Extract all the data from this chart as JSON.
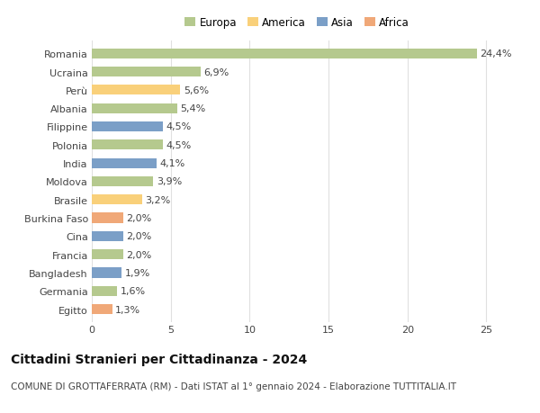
{
  "categories": [
    "Romania",
    "Ucraina",
    "Perù",
    "Albania",
    "Filippine",
    "Polonia",
    "India",
    "Moldova",
    "Brasile",
    "Burkina Faso",
    "Cina",
    "Francia",
    "Bangladesh",
    "Germania",
    "Egitto"
  ],
  "values": [
    24.4,
    6.9,
    5.6,
    5.4,
    4.5,
    4.5,
    4.1,
    3.9,
    3.2,
    2.0,
    2.0,
    2.0,
    1.9,
    1.6,
    1.3
  ],
  "labels": [
    "24,4%",
    "6,9%",
    "5,6%",
    "5,4%",
    "4,5%",
    "4,5%",
    "4,1%",
    "3,9%",
    "3,2%",
    "2,0%",
    "2,0%",
    "2,0%",
    "1,9%",
    "1,6%",
    "1,3%"
  ],
  "continents": [
    "Europa",
    "Europa",
    "America",
    "Europa",
    "Asia",
    "Europa",
    "Asia",
    "Europa",
    "America",
    "Africa",
    "Asia",
    "Europa",
    "Asia",
    "Europa",
    "Africa"
  ],
  "colors": {
    "Europa": "#b5c98e",
    "America": "#f9d07a",
    "Asia": "#7b9fc7",
    "Africa": "#f0a878"
  },
  "legend_labels": [
    "Europa",
    "America",
    "Asia",
    "Africa"
  ],
  "xlim": [
    0,
    26
  ],
  "xticks": [
    0,
    5,
    10,
    15,
    20,
    25
  ],
  "title": "Cittadini Stranieri per Cittadinanza - 2024",
  "subtitle": "COMUNE DI GROTTAFERRATA (RM) - Dati ISTAT al 1° gennaio 2024 - Elaborazione TUTTITALIA.IT",
  "background_color": "#ffffff",
  "grid_color": "#e0e0e0",
  "bar_height": 0.55,
  "title_fontsize": 10,
  "subtitle_fontsize": 7.5,
  "label_fontsize": 8,
  "tick_fontsize": 8,
  "legend_fontsize": 8.5
}
